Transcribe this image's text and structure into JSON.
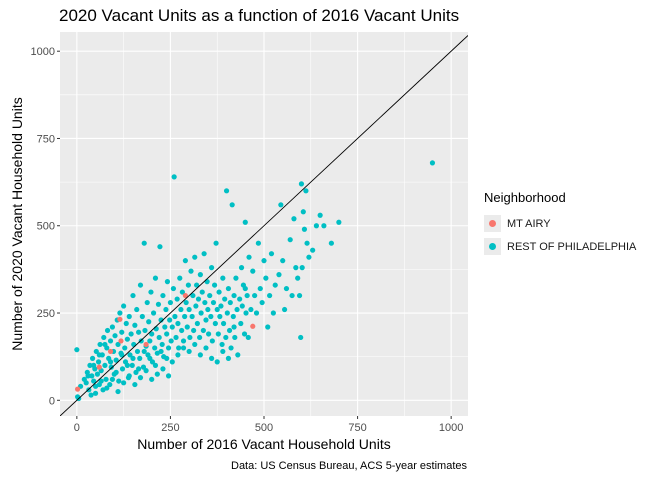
{
  "chart_data": {
    "type": "scatter",
    "title": "2020 Vacant Units as a function of 2016 Vacant Units",
    "xlabel": "Number of 2016 Vacant Household Units",
    "ylabel": "Number of 2020 Vacant Household Units",
    "caption": "Data: US Census Bureau, ACS 5-year estimates",
    "xlim": [
      -45,
      1045
    ],
    "ylim": [
      -45,
      1055
    ],
    "x_ticks": [
      0,
      250,
      500,
      750,
      1000
    ],
    "y_ticks": [
      0,
      250,
      500,
      750,
      1000
    ],
    "x_tick_labels": [
      "0",
      "250",
      "500",
      "750",
      "1000"
    ],
    "y_tick_labels": [
      "0",
      "250",
      "500",
      "750",
      "1000"
    ],
    "grid": true,
    "reference_line": {
      "slope": 1,
      "intercept": 0,
      "color": "#000000"
    },
    "legend": {
      "title": "Neighborhood",
      "position": "right"
    },
    "series": [
      {
        "name": "MT AIRY",
        "color": "#F8766D",
        "points": [
          [
            2,
            32
          ],
          [
            115,
            232
          ],
          [
            118,
            170
          ],
          [
            470,
            212
          ],
          [
            185,
            160
          ],
          [
            90,
            140
          ],
          [
            60,
            95
          ],
          [
            290,
            300
          ]
        ]
      },
      {
        "name": "REST OF PHILADELPHIA",
        "color": "#00BFC4",
        "points": [
          [
            0,
            145
          ],
          [
            2,
            10
          ],
          [
            5,
            5
          ],
          [
            10,
            40
          ],
          [
            20,
            60
          ],
          [
            25,
            50
          ],
          [
            28,
            80
          ],
          [
            32,
            30
          ],
          [
            35,
            100
          ],
          [
            38,
            15
          ],
          [
            40,
            70
          ],
          [
            42,
            120
          ],
          [
            45,
            55
          ],
          [
            48,
            90
          ],
          [
            50,
            20
          ],
          [
            52,
            140
          ],
          [
            55,
            75
          ],
          [
            58,
            110
          ],
          [
            60,
            45
          ],
          [
            62,
            160
          ],
          [
            65,
            85
          ],
          [
            68,
            130
          ],
          [
            70,
            30
          ],
          [
            72,
            180
          ],
          [
            75,
            100
          ],
          [
            78,
            60
          ],
          [
            80,
            150
          ],
          [
            82,
            200
          ],
          [
            85,
            120
          ],
          [
            88,
            45
          ],
          [
            90,
            170
          ],
          [
            92,
            95
          ],
          [
            95,
            210
          ],
          [
            98,
            140
          ],
          [
            100,
            75
          ],
          [
            102,
            185
          ],
          [
            105,
            115
          ],
          [
            108,
            230
          ],
          [
            110,
            160
          ],
          [
            112,
            55
          ],
          [
            115,
            250
          ],
          [
            118,
            135
          ],
          [
            120,
            195
          ],
          [
            122,
            90
          ],
          [
            125,
            270
          ],
          [
            128,
            150
          ],
          [
            130,
            110
          ],
          [
            132,
            220
          ],
          [
            135,
            175
          ],
          [
            138,
            65
          ],
          [
            140,
            240
          ],
          [
            142,
            130
          ],
          [
            145,
            190
          ],
          [
            148,
            100
          ],
          [
            150,
            300
          ],
          [
            152,
            160
          ],
          [
            155,
            215
          ],
          [
            158,
            80
          ],
          [
            160,
            260
          ],
          [
            162,
            140
          ],
          [
            165,
            195
          ],
          [
            168,
            120
          ],
          [
            170,
            330
          ],
          [
            172,
            170
          ],
          [
            175,
            240
          ],
          [
            178,
            95
          ],
          [
            180,
            450
          ],
          [
            182,
            200
          ],
          [
            185,
            155
          ],
          [
            188,
            280
          ],
          [
            190,
            130
          ],
          [
            192,
            225
          ],
          [
            195,
            170
          ],
          [
            198,
            310
          ],
          [
            200,
            190
          ],
          [
            202,
            110
          ],
          [
            205,
            250
          ],
          [
            208,
            150
          ],
          [
            210,
            350
          ],
          [
            212,
            205
          ],
          [
            215,
            135
          ],
          [
            218,
            275
          ],
          [
            220,
            180
          ],
          [
            222,
            440
          ],
          [
            225,
            230
          ],
          [
            228,
            160
          ],
          [
            230,
            300
          ],
          [
            232,
            125
          ],
          [
            235,
            210
          ],
          [
            238,
            260
          ],
          [
            240,
            190
          ],
          [
            242,
            340
          ],
          [
            245,
            150
          ],
          [
            248,
            230
          ],
          [
            250,
            280
          ],
          [
            252,
            170
          ],
          [
            255,
            210
          ],
          [
            258,
            320
          ],
          [
            260,
            640
          ],
          [
            262,
            240
          ],
          [
            265,
            180
          ],
          [
            268,
            290
          ],
          [
            270,
            220
          ],
          [
            272,
            150
          ],
          [
            275,
            350
          ],
          [
            278,
            260
          ],
          [
            280,
            200
          ],
          [
            282,
            310
          ],
          [
            285,
            170
          ],
          [
            288,
            240
          ],
          [
            290,
            400
          ],
          [
            292,
            280
          ],
          [
            295,
            210
          ],
          [
            298,
            330
          ],
          [
            300,
            260
          ],
          [
            302,
            180
          ],
          [
            305,
            370
          ],
          [
            308,
            240
          ],
          [
            310,
            300
          ],
          [
            312,
            200
          ],
          [
            315,
            410
          ],
          [
            318,
            270
          ],
          [
            320,
            330
          ],
          [
            322,
            220
          ],
          [
            325,
            290
          ],
          [
            328,
            180
          ],
          [
            330,
            360
          ],
          [
            332,
            250
          ],
          [
            335,
            310
          ],
          [
            338,
            200
          ],
          [
            340,
            420
          ],
          [
            342,
            280
          ],
          [
            345,
            230
          ],
          [
            348,
            340
          ],
          [
            350,
            260
          ],
          [
            352,
            190
          ],
          [
            355,
            300
          ],
          [
            358,
            240
          ],
          [
            360,
            380
          ],
          [
            362,
            170
          ],
          [
            365,
            280
          ],
          [
            368,
            330
          ],
          [
            370,
            220
          ],
          [
            372,
            450
          ],
          [
            375,
            260
          ],
          [
            378,
            190
          ],
          [
            380,
            310
          ],
          [
            382,
            240
          ],
          [
            385,
            270
          ],
          [
            388,
            160
          ],
          [
            390,
            350
          ],
          [
            392,
            220
          ],
          [
            395,
            290
          ],
          [
            398,
            180
          ],
          [
            400,
            600
          ],
          [
            402,
            250
          ],
          [
            405,
            320
          ],
          [
            408,
            200
          ],
          [
            410,
            280
          ],
          [
            412,
            150
          ],
          [
            415,
            560
          ],
          [
            418,
            240
          ],
          [
            420,
            300
          ],
          [
            422,
            180
          ],
          [
            425,
            350
          ],
          [
            428,
            260
          ],
          [
            430,
            130
          ],
          [
            435,
            290
          ],
          [
            438,
            220
          ],
          [
            440,
            380
          ],
          [
            442,
            270
          ],
          [
            445,
            330
          ],
          [
            448,
            190
          ],
          [
            450,
            510
          ],
          [
            452,
            250
          ],
          [
            455,
            300
          ],
          [
            458,
            180
          ],
          [
            460,
            410
          ],
          [
            465,
            260
          ],
          [
            470,
            370
          ],
          [
            475,
            300
          ],
          [
            480,
            250
          ],
          [
            485,
            450
          ],
          [
            490,
            320
          ],
          [
            495,
            280
          ],
          [
            500,
            400
          ],
          [
            505,
            350
          ],
          [
            510,
            210
          ],
          [
            515,
            300
          ],
          [
            520,
            420
          ],
          [
            525,
            250
          ],
          [
            530,
            330
          ],
          [
            540,
            360
          ],
          [
            545,
            560
          ],
          [
            550,
            400
          ],
          [
            555,
            260
          ],
          [
            560,
            320
          ],
          [
            570,
            460
          ],
          [
            575,
            300
          ],
          [
            580,
            520
          ],
          [
            585,
            380
          ],
          [
            590,
            350
          ],
          [
            595,
            300
          ],
          [
            598,
            180
          ],
          [
            600,
            620
          ],
          [
            602,
            380
          ],
          [
            605,
            540
          ],
          [
            608,
            490
          ],
          [
            612,
            600
          ],
          [
            615,
            450
          ],
          [
            620,
            410
          ],
          [
            630,
            430
          ],
          [
            640,
            500
          ],
          [
            650,
            530
          ],
          [
            660,
            500
          ],
          [
            680,
            450
          ],
          [
            700,
            510
          ],
          [
            950,
            680
          ],
          [
            450,
            320
          ],
          [
            420,
            210
          ],
          [
            30,
            70
          ],
          [
            45,
            100
          ],
          [
            60,
            130
          ],
          [
            75,
            160
          ],
          [
            90,
            110
          ],
          [
            105,
            80
          ],
          [
            120,
            130
          ],
          [
            135,
            100
          ],
          [
            150,
            120
          ],
          [
            165,
            90
          ],
          [
            180,
            140
          ],
          [
            195,
            120
          ],
          [
            210,
            100
          ],
          [
            225,
            140
          ],
          [
            240,
            120
          ],
          [
            255,
            110
          ],
          [
            270,
            130
          ],
          [
            285,
            150
          ],
          [
            300,
            140
          ],
          [
            315,
            160
          ],
          [
            330,
            130
          ],
          [
            345,
            150
          ],
          [
            360,
            120
          ],
          [
            375,
            110
          ],
          [
            390,
            140
          ],
          [
            405,
            120
          ],
          [
            50,
            40
          ],
          [
            65,
            55
          ],
          [
            80,
            35
          ],
          [
            95,
            60
          ],
          [
            110,
            25
          ],
          [
            125,
            50
          ],
          [
            140,
            70
          ],
          [
            155,
            45
          ],
          [
            170,
            65
          ],
          [
            185,
            85
          ],
          [
            200,
            60
          ],
          [
            215,
            75
          ],
          [
            230,
            90
          ],
          [
            245,
            70
          ]
        ]
      }
    ]
  }
}
